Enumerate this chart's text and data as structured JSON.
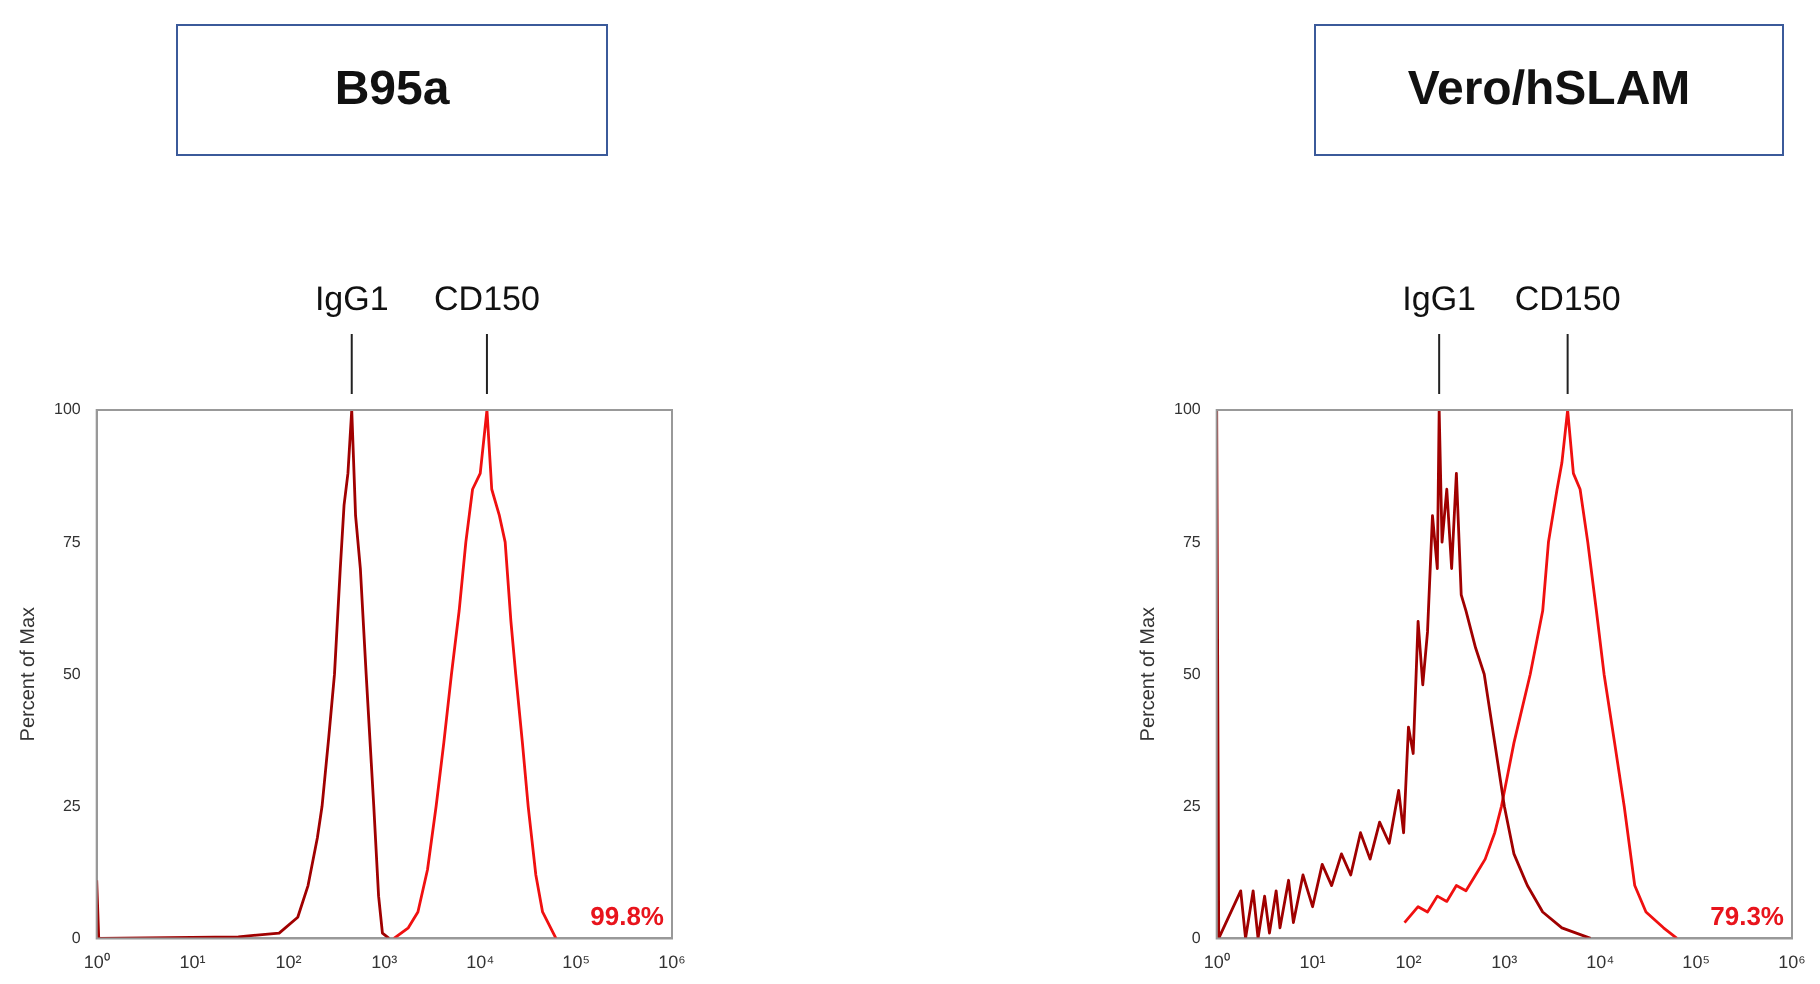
{
  "chart_data": [
    {
      "type": "line",
      "title": "B95a",
      "ylabel": "Percent of Max",
      "xlim": [
        1,
        1000000
      ],
      "log": "x",
      "grid": false,
      "legend": false,
      "marker": "none",
      "xticks": [
        {
          "value": 1,
          "label": "10⁰"
        },
        {
          "value": 10,
          "label": "10¹"
        },
        {
          "value": 100,
          "label": "10²"
        },
        {
          "value": 1000,
          "label": "10³"
        },
        {
          "value": 10000,
          "label": "10⁴"
        },
        {
          "value": 100000,
          "label": "10⁵"
        },
        {
          "value": 1000000,
          "label": "10⁶"
        }
      ],
      "ylim": [
        0,
        100
      ],
      "yticks": [
        0,
        25,
        50,
        75,
        100
      ],
      "annotations": [
        "99.8%"
      ],
      "series": [
        {
          "name": "IgG1",
          "color": "#a00000",
          "x": [
            1,
            1.05,
            30,
            80,
            125,
            160,
            200,
            224,
            263,
            302,
            347,
            380,
            417,
            457,
            501,
            562,
            646,
            776,
            871,
            955,
            1120
          ],
          "values": [
            11,
            0,
            0.3,
            1,
            4,
            10,
            19,
            25,
            38,
            50,
            70,
            82,
            88,
            100,
            80,
            70,
            50,
            25,
            8,
            1,
            0
          ]
        },
        {
          "name": "CD150",
          "color": "#f01010",
          "x": [
            1259,
            1778,
            2239,
            2818,
            3467,
            4169,
            5012,
            6026,
            7079,
            8318,
            10000,
            11749,
            13183,
            15849,
            18197,
            20893,
            23442,
            27542,
            31623,
            38019,
            44668,
            61660
          ],
          "values": [
            0,
            2,
            5,
            13,
            25,
            37,
            50,
            62,
            75,
            85,
            88,
            100,
            85,
            80,
            75,
            60,
            50,
            37,
            25,
            12,
            5,
            0
          ]
        }
      ]
    },
    {
      "type": "line",
      "title": "Vero/hSLAM",
      "ylabel": "Percent of Max",
      "xlim": [
        1,
        1000000
      ],
      "log": "x",
      "grid": false,
      "legend": false,
      "marker": "none",
      "xticks": [
        {
          "value": 1,
          "label": "10⁰"
        },
        {
          "value": 10,
          "label": "10¹"
        },
        {
          "value": 100,
          "label": "10²"
        },
        {
          "value": 1000,
          "label": "10³"
        },
        {
          "value": 10000,
          "label": "10⁴"
        },
        {
          "value": 100000,
          "label": "10⁵"
        },
        {
          "value": 1000000,
          "label": "10⁶"
        }
      ],
      "ylim": [
        0,
        100
      ],
      "yticks": [
        0,
        25,
        50,
        75,
        100
      ],
      "annotations": [
        "79.3%"
      ],
      "series": [
        {
          "name": "IgG1",
          "color": "#a00000",
          "x": [
            1,
            1.05,
            1.78,
            2,
            2.4,
            2.7,
            3.16,
            3.55,
            4.17,
            4.57,
            5.62,
            6.31,
            7.94,
            10,
            12.6,
            15.8,
            20,
            25,
            31.6,
            39.8,
            50,
            63,
            79,
            89,
            100,
            112,
            126,
            141,
            158,
            178,
            200,
            209,
            224,
            251,
            282,
            316,
            355,
            398,
            501,
            617,
            794,
            1000,
            1259,
            1738,
            2512,
            3981,
            7943
          ],
          "values": [
            100,
            0,
            9,
            0,
            9,
            0,
            8,
            1,
            9,
            2,
            11,
            3,
            12,
            6,
            14,
            10,
            16,
            12,
            20,
            15,
            22,
            18,
            28,
            20,
            40,
            35,
            60,
            48,
            58,
            80,
            70,
            100,
            75,
            85,
            70,
            88,
            65,
            62,
            55,
            50,
            37,
            25,
            16,
            10,
            5,
            2,
            0
          ]
        },
        {
          "name": "CD150",
          "color": "#f01010",
          "x": [
            91,
            126,
            158,
            200,
            251,
            316,
            398,
            501,
            631,
            794,
            933,
            1259,
            1862,
            2512,
            2884,
            3548,
            3981,
            4571,
            5248,
            6166,
            7413,
            9120,
            10965,
            14125,
            17783,
            22909,
            30000,
            45709,
            63096
          ],
          "values": [
            3,
            6,
            5,
            8,
            7,
            10,
            9,
            12,
            15,
            20,
            25,
            37,
            50,
            62,
            75,
            85,
            90,
            100,
            88,
            85,
            75,
            62,
            50,
            37,
            25,
            10,
            5,
            2,
            0
          ]
        }
      ]
    }
  ]
}
